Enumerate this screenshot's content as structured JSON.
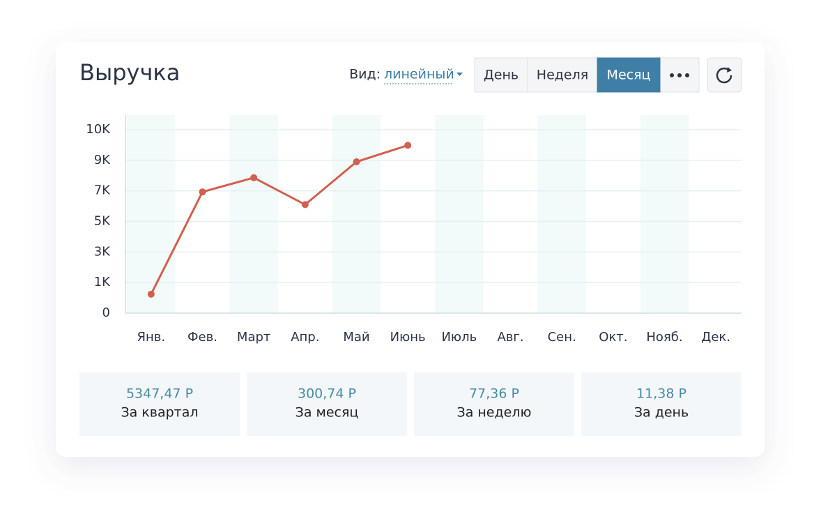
{
  "title": "Выручка",
  "view": {
    "label": "Вид:",
    "value": "линейный"
  },
  "buttons": [
    {
      "label": "День",
      "active": false
    },
    {
      "label": "Неделя",
      "active": false
    },
    {
      "label": "Месяц",
      "active": true
    }
  ],
  "chart_data": {
    "type": "line",
    "categories": [
      "Янв.",
      "Фев.",
      "Март",
      "Апр.",
      "Май",
      "Июнь",
      "Июль",
      "Авг.",
      "Сен.",
      "Окт.",
      "Нояб.",
      "Дек."
    ],
    "values": [
      620,
      6930,
      7860,
      6100,
      8900,
      9490,
      null,
      null,
      null,
      null,
      null,
      null
    ],
    "color": "#d0604f",
    "ylim": [
      0,
      10000
    ],
    "yticks": [
      0,
      {
        "value": 1000,
        "label": "1K"
      },
      {
        "value": 3000,
        "label": "3K"
      },
      {
        "value": 5000,
        "label": "5K"
      },
      {
        "value": 7000,
        "label": "7K"
      },
      {
        "value": 9000,
        "label": "9K"
      },
      {
        "value": 10000,
        "label": "10K"
      }
    ],
    "grid": true
  },
  "stats": [
    {
      "value": "5347,47 Р",
      "label": "За квартал"
    },
    {
      "value": "300,74 Р",
      "label": "За месяц"
    },
    {
      "value": "77,36 Р",
      "label": "За неделю"
    },
    {
      "value": "11,38 Р",
      "label": "За день"
    }
  ]
}
